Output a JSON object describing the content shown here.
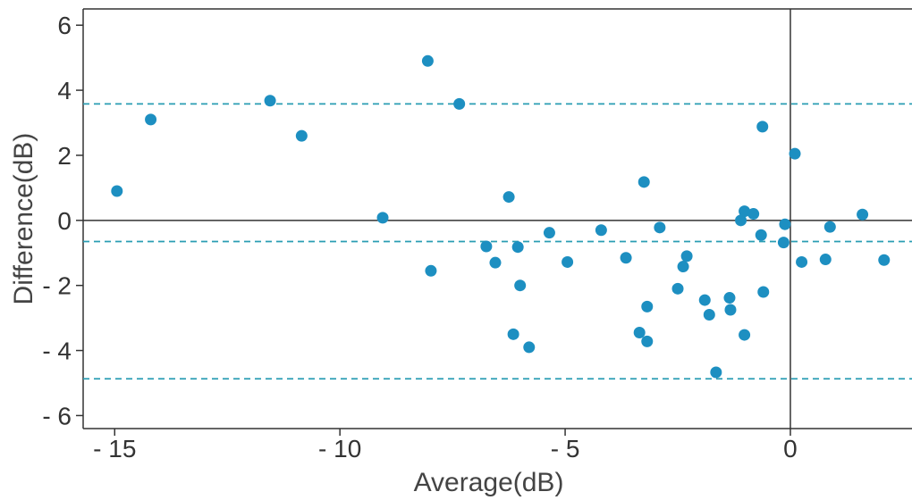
{
  "chart_data": {
    "type": "scatter",
    "title": "",
    "xlabel": "Average(dB)",
    "ylabel": "Difference(dB)",
    "xlim": [
      -15.7,
      2.7
    ],
    "ylim": [
      -6.4,
      6.5
    ],
    "x_ticks": [
      -15,
      -10,
      -5,
      0
    ],
    "x_tick_labels": [
      "- 15",
      "- 10",
      "- 5",
      "0"
    ],
    "y_ticks": [
      6,
      4,
      2,
      0,
      -2,
      -4,
      -6
    ],
    "y_tick_labels": [
      "6",
      "4",
      "2",
      "0",
      "- 2",
      "- 4",
      "- 6"
    ],
    "grid": false,
    "reference_lines": {
      "zero_x": 0,
      "zero_y": 0,
      "mean_difference": -0.65,
      "upper_limit": 3.58,
      "lower_limit": -4.87
    },
    "colors": {
      "points": "#1d8fc1",
      "limit_lines": "#2a9db3",
      "axes": "#333333"
    },
    "points": [
      {
        "x": -14.95,
        "y": 0.9
      },
      {
        "x": -14.2,
        "y": 3.1
      },
      {
        "x": -11.55,
        "y": 3.68
      },
      {
        "x": -10.85,
        "y": 2.6
      },
      {
        "x": -9.05,
        "y": 0.08
      },
      {
        "x": -8.05,
        "y": 4.9
      },
      {
        "x": -7.98,
        "y": -1.55
      },
      {
        "x": -7.35,
        "y": 3.58
      },
      {
        "x": -6.75,
        "y": -0.8
      },
      {
        "x": -6.55,
        "y": -1.3
      },
      {
        "x": -6.25,
        "y": 0.72
      },
      {
        "x": -6.15,
        "y": -3.5
      },
      {
        "x": -6.05,
        "y": -0.82
      },
      {
        "x": -6.0,
        "y": -2.0
      },
      {
        "x": -5.8,
        "y": -3.9
      },
      {
        "x": -5.35,
        "y": -0.38
      },
      {
        "x": -4.95,
        "y": -1.28
      },
      {
        "x": -4.2,
        "y": -0.3
      },
      {
        "x": -3.65,
        "y": -1.15
      },
      {
        "x": -3.35,
        "y": -3.45
      },
      {
        "x": -3.25,
        "y": 1.18
      },
      {
        "x": -3.18,
        "y": -2.65
      },
      {
        "x": -3.18,
        "y": -3.72
      },
      {
        "x": -2.9,
        "y": -0.22
      },
      {
        "x": -2.5,
        "y": -2.1
      },
      {
        "x": -2.38,
        "y": -1.42
      },
      {
        "x": -2.3,
        "y": -1.1
      },
      {
        "x": -1.9,
        "y": -2.45
      },
      {
        "x": -1.8,
        "y": -2.9
      },
      {
        "x": -1.65,
        "y": -4.67
      },
      {
        "x": -1.35,
        "y": -2.38
      },
      {
        "x": -1.33,
        "y": -2.75
      },
      {
        "x": -1.1,
        "y": 0.0
      },
      {
        "x": -1.02,
        "y": 0.28
      },
      {
        "x": -1.02,
        "y": -3.52
      },
      {
        "x": -0.82,
        "y": 0.2
      },
      {
        "x": -0.65,
        "y": -0.45
      },
      {
        "x": -0.62,
        "y": 2.88
      },
      {
        "x": -0.6,
        "y": -2.2
      },
      {
        "x": -0.15,
        "y": -0.68
      },
      {
        "x": -0.12,
        "y": -0.12
      },
      {
        "x": 0.1,
        "y": 2.05
      },
      {
        "x": 0.25,
        "y": -1.28
      },
      {
        "x": 0.78,
        "y": -1.2
      },
      {
        "x": 0.88,
        "y": -0.2
      },
      {
        "x": 1.6,
        "y": 0.18
      },
      {
        "x": 2.08,
        "y": -1.22
      }
    ]
  }
}
